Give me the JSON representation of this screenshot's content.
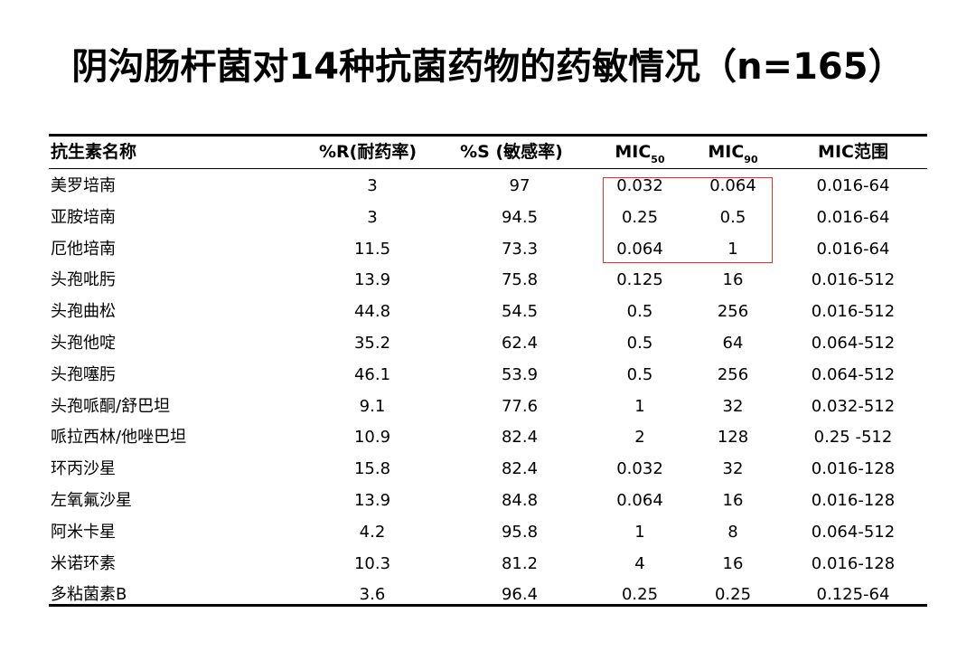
{
  "title": "阴沟肠杆菌对14种抗菌药物的药敏情况（n=165）",
  "table": {
    "headers": {
      "name": "抗生素名称",
      "r": "%R(耐药率)",
      "s": "%S (敏感率)",
      "mic50_main": "MIC",
      "mic50_sub": "50",
      "mic90_main": "MIC",
      "mic90_sub": "90",
      "range": "MIC范围"
    },
    "rows": [
      {
        "name": "美罗培南",
        "r": "3",
        "s": "97",
        "mic50": "0.032",
        "mic90": "0.064",
        "range": "0.016-64"
      },
      {
        "name": "亚胺培南",
        "r": "3",
        "s": "94.5",
        "mic50": "0.25",
        "mic90": "0.5",
        "range": "0.016-64"
      },
      {
        "name": "厄他培南",
        "r": "11.5",
        "s": "73.3",
        "mic50": "0.064",
        "mic90": "1",
        "range": "0.016-64"
      },
      {
        "name": "头孢吡肟",
        "r": "13.9",
        "s": "75.8",
        "mic50": "0.125",
        "mic90": "16",
        "range": "0.016-512"
      },
      {
        "name": "头孢曲松",
        "r": "44.8",
        "s": "54.5",
        "mic50": "0.5",
        "mic90": "256",
        "range": "0.016-512"
      },
      {
        "name": "头孢他啶",
        "r": "35.2",
        "s": "62.4",
        "mic50": "0.5",
        "mic90": "64",
        "range": "0.064-512"
      },
      {
        "name": "头孢噻肟",
        "r": "46.1",
        "s": "53.9",
        "mic50": "0.5",
        "mic90": "256",
        "range": "0.064-512"
      },
      {
        "name": "头孢哌酮/舒巴坦",
        "r": "9.1",
        "s": "77.6",
        "mic50": "1",
        "mic90": "32",
        "range": "0.032-512"
      },
      {
        "name": "哌拉西林/他唑巴坦",
        "r": "10.9",
        "s": "82.4",
        "mic50": "2",
        "mic90": "128",
        "range": "0.25 -512"
      },
      {
        "name": "环丙沙星",
        "r": "15.8",
        "s": "82.4",
        "mic50": "0.032",
        "mic90": "32",
        "range": "0.016-128"
      },
      {
        "name": "左氧氟沙星",
        "r": "13.9",
        "s": "84.8",
        "mic50": "0.064",
        "mic90": "16",
        "range": "0.016-128"
      },
      {
        "name": "阿米卡星",
        "r": "4.2",
        "s": "95.8",
        "mic50": "1",
        "mic90": "8",
        "range": "0.064-512"
      },
      {
        "name": "米诺环素",
        "r": "10.3",
        "s": "81.2",
        "mic50": "4",
        "mic90": "16",
        "range": "0.016-128"
      },
      {
        "name": "多粘菌素B",
        "r": "3.6",
        "s": "96.4",
        "mic50": "0.25",
        "mic90": "0.25",
        "range": "0.125-64"
      }
    ]
  },
  "highlight_color": "#d9322f"
}
